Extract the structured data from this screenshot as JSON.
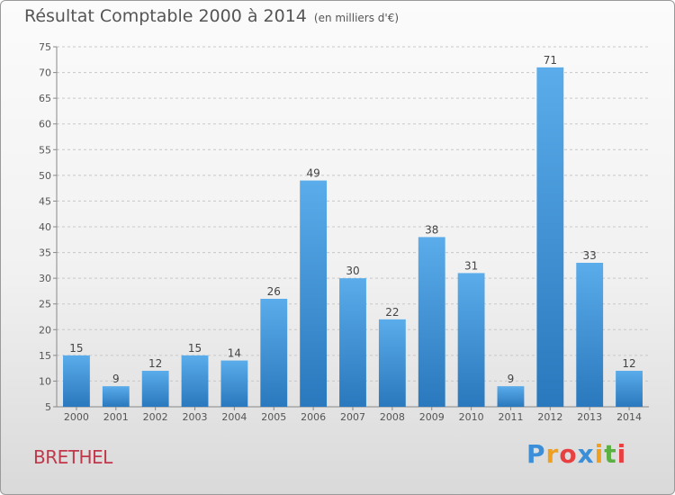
{
  "chart_data": {
    "type": "bar",
    "title": "Résultat Comptable 2000 à 2014",
    "subtitle": "(en milliers d'€)",
    "categories": [
      "2000",
      "2001",
      "2002",
      "2003",
      "2004",
      "2005",
      "2006",
      "2007",
      "2008",
      "2009",
      "2010",
      "2011",
      "2012",
      "2013",
      "2014"
    ],
    "values": [
      15,
      9,
      12,
      15,
      14,
      26,
      49,
      30,
      22,
      38,
      31,
      9,
      71,
      33,
      12
    ],
    "ylim": [
      5,
      75
    ],
    "yticks": [
      5,
      10,
      15,
      20,
      25,
      30,
      35,
      40,
      45,
      50,
      55,
      60,
      65,
      70,
      75
    ],
    "grid": true,
    "bar_color": "#3d8fd6"
  },
  "town": "BRETHEL",
  "logo": {
    "letters": [
      "P",
      "r",
      "o",
      "x",
      "i",
      "t",
      "i"
    ],
    "colors": [
      "#3a8fd8",
      "#f0a020",
      "#e84040",
      "#3a8fd8",
      "#f0a020",
      "#5ab040",
      "#e84040"
    ]
  }
}
